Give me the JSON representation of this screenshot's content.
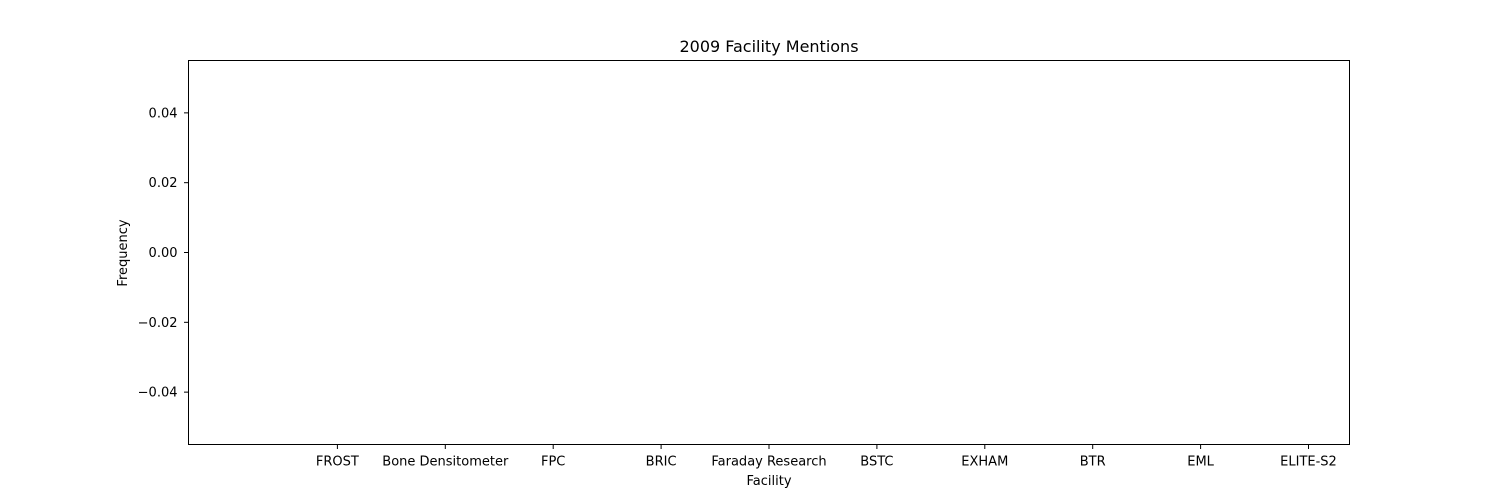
{
  "chart_data": {
    "type": "bar",
    "title": "2009 Facility Mentions",
    "xlabel": "Facility",
    "ylabel": "Frequency",
    "categories": [
      "FROST",
      "Bone Densitometer",
      "FPC",
      "BRIC",
      "Faraday Research",
      "BSTC",
      "EXHAM",
      "BTR",
      "EML",
      "ELITE-S2"
    ],
    "values": [
      0,
      0,
      0,
      0,
      0,
      0,
      0,
      0,
      0,
      0
    ],
    "ylim": [
      -0.055,
      0.055
    ],
    "yticks": [
      -0.04,
      -0.02,
      0.0,
      0.02,
      0.04
    ],
    "ytick_labels": [
      "−0.04",
      "−0.02",
      "0.00",
      "0.02",
      "0.04"
    ],
    "grid": false,
    "legend": null,
    "colors": {
      "bar": "#1f77b4",
      "axes": "#000000",
      "background": "#ffffff"
    }
  }
}
